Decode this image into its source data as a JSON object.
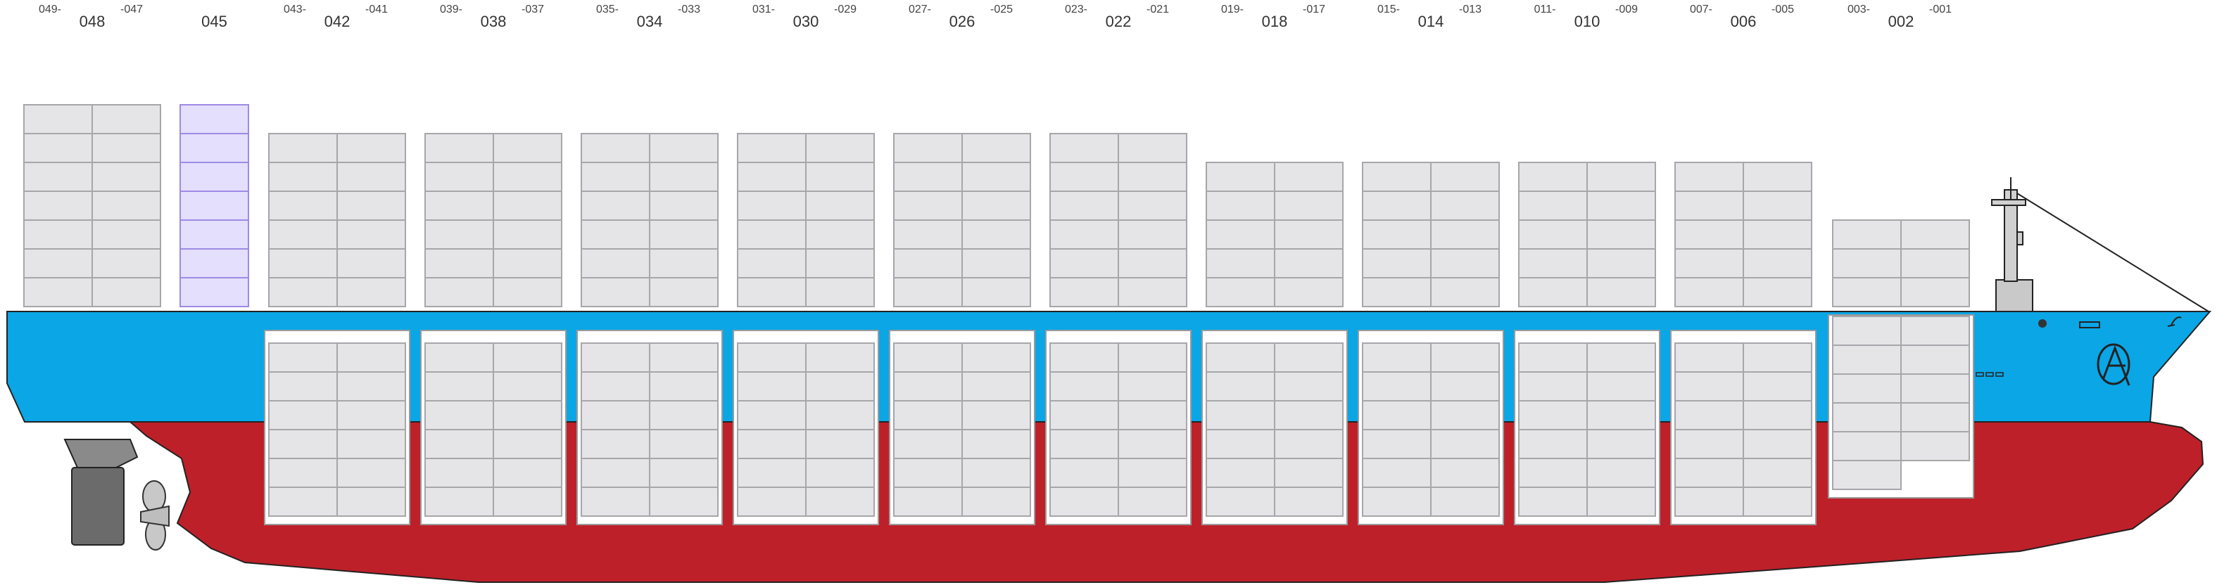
{
  "bays": [
    {
      "main": "048",
      "left": "049-",
      "right": "-047",
      "deck_rows": 7,
      "hold": null,
      "highlight": false
    },
    {
      "main": "045",
      "left": "",
      "right": "",
      "deck_rows": 7,
      "hold": null,
      "highlight": true,
      "single": true
    },
    {
      "main": "042",
      "left": "043-",
      "right": "-041",
      "deck_rows": 6,
      "hold": {
        "rows": 6,
        "partial": false
      },
      "highlight": false
    },
    {
      "main": "038",
      "left": "039-",
      "right": "-037",
      "deck_rows": 6,
      "hold": {
        "rows": 6,
        "partial": false
      },
      "highlight": false
    },
    {
      "main": "034",
      "left": "035-",
      "right": "-033",
      "deck_rows": 6,
      "hold": {
        "rows": 6,
        "partial": false
      },
      "highlight": false
    },
    {
      "main": "030",
      "left": "031-",
      "right": "-029",
      "deck_rows": 6,
      "hold": {
        "rows": 6,
        "partial": false
      },
      "highlight": false
    },
    {
      "main": "026",
      "left": "027-",
      "right": "-025",
      "deck_rows": 6,
      "hold": {
        "rows": 6,
        "partial": false
      },
      "highlight": false
    },
    {
      "main": "022",
      "left": "023-",
      "right": "-021",
      "deck_rows": 6,
      "hold": {
        "rows": 6,
        "partial": false
      },
      "highlight": false
    },
    {
      "main": "018",
      "left": "019-",
      "right": "-017",
      "deck_rows": 5,
      "hold": {
        "rows": 6,
        "partial": false
      },
      "highlight": false
    },
    {
      "main": "014",
      "left": "015-",
      "right": "-013",
      "deck_rows": 5,
      "hold": {
        "rows": 6,
        "partial": false
      },
      "highlight": false
    },
    {
      "main": "010",
      "left": "011-",
      "right": "-009",
      "deck_rows": 5,
      "hold": {
        "rows": 6,
        "partial": false
      },
      "highlight": false
    },
    {
      "main": "006",
      "left": "007-",
      "right": "-005",
      "deck_rows": 5,
      "hold": {
        "rows": 6,
        "partial": false
      },
      "highlight": false
    },
    {
      "main": "002",
      "left": "003-",
      "right": "-001",
      "deck_rows": 3,
      "hold": {
        "rows": 6,
        "partial": true
      },
      "highlight": false
    }
  ],
  "colors": {
    "hull_upper": "#0aa6e6",
    "hull_lower": "#be2029",
    "container_fill": "#e5e5e8",
    "container_stroke": "#a6a6ab",
    "highlight_fill": "#e3dffc",
    "highlight_stroke": "#9f8ae6",
    "hold_frame": "#ffffff",
    "rudder": "#6b6b6b",
    "propeller": "#c8c8c8"
  }
}
